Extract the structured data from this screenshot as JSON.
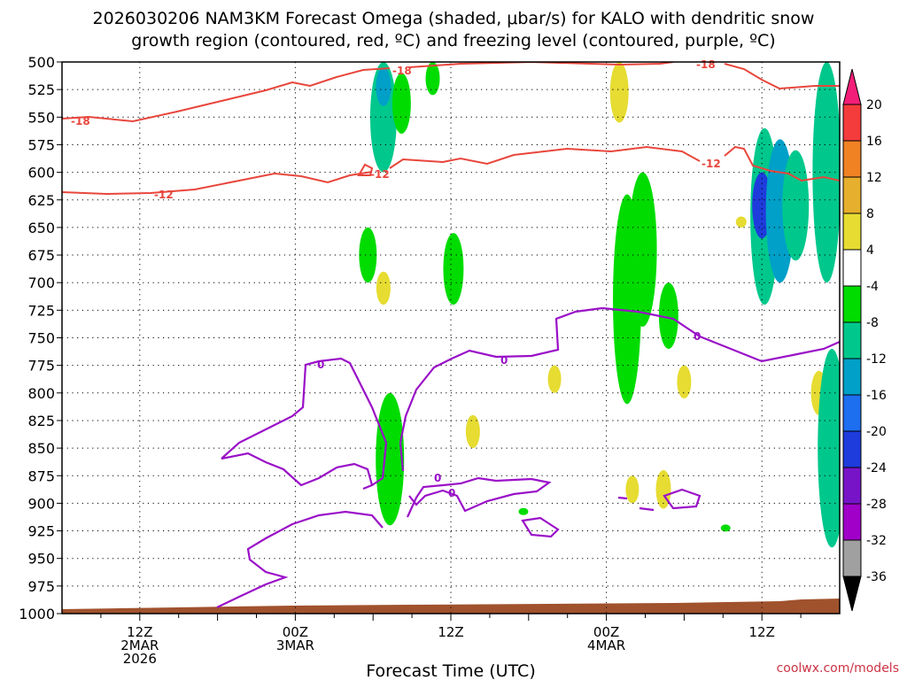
{
  "title_line1": "2026030206 NAM3KM Forecast Omega (shaded, μbar/s) for KALO with dendritic snow",
  "title_line2": "growth region (contoured, red, ºC) and freezing level (contoured, purple, ºC)",
  "credit": "coolwx.com/models",
  "chart_data": {
    "type": "heatmap",
    "title": "2026030206 NAM3KM Forecast Omega (shaded, μbar/s) for KALO with dendritic snow growth region (contoured, red, ºC) and freezing level (contoured, purple, ºC)",
    "xlabel": "Forecast Time (UTC)",
    "ylabel": "",
    "y_axis": {
      "ticks": [
        500,
        525,
        550,
        575,
        600,
        625,
        650,
        675,
        700,
        725,
        750,
        775,
        800,
        825,
        850,
        875,
        900,
        925,
        950,
        975,
        1000
      ],
      "range": [
        500,
        1000
      ],
      "direction": "increasing-downward"
    },
    "x_axis": {
      "range_hours_from_init": [
        0,
        60
      ],
      "tick_labels": [
        {
          "hour": 6,
          "lines": [
            "12Z",
            "2MAR",
            "2026"
          ]
        },
        {
          "hour": 18,
          "lines": [
            "00Z",
            "3MAR"
          ]
        },
        {
          "hour": 30,
          "lines": [
            "12Z"
          ]
        },
        {
          "hour": 42,
          "lines": [
            "00Z",
            "4MAR"
          ]
        },
        {
          "hour": 54,
          "lines": [
            "12Z"
          ]
        }
      ]
    },
    "grid": true,
    "colorbar": {
      "ticks": [
        20,
        16,
        12,
        8,
        4,
        -4,
        -8,
        -12,
        -16,
        -20,
        -24,
        -28,
        -32,
        -36
      ],
      "colors": [
        "#f21e78",
        "#f43c3c",
        "#f08224",
        "#e6af2d",
        "#e6dc32",
        "#ffffff",
        "#00dc00",
        "#00c88c",
        "#00a0c8",
        "#1e6ef0",
        "#1e3cdc",
        "#7814c8",
        "#a000c8",
        "#a0a0a0",
        "#000000"
      ]
    },
    "contour_labels": {
      "dendritic": [
        "-18",
        "-12",
        "-18",
        "-12",
        "-18",
        "-12"
      ],
      "freezing": [
        "0",
        "0",
        "0",
        "0",
        "0"
      ]
    },
    "series": [
      {
        "kind": "omega",
        "points": [
          {
            "x": 24.8,
            "y1": 500,
            "y2": 600,
            "v": -8
          },
          {
            "x": 24.8,
            "y1": 505,
            "y2": 540,
            "v": -12
          },
          {
            "x": 26.2,
            "y1": 510,
            "y2": 565,
            "v": -6
          },
          {
            "x": 28.6,
            "y1": 500,
            "y2": 530,
            "v": -6
          },
          {
            "x": 30.2,
            "y1": 655,
            "y2": 720,
            "v": -6
          },
          {
            "x": 23.6,
            "y1": 650,
            "y2": 700,
            "v": -6
          },
          {
            "x": 24.8,
            "y1": 690,
            "y2": 720,
            "v": 5
          },
          {
            "x": 25.3,
            "y1": 800,
            "y2": 920,
            "v": -6
          },
          {
            "x": 43.0,
            "y1": 500,
            "y2": 555,
            "v": 5
          },
          {
            "x": 43.6,
            "y1": 620,
            "y2": 810,
            "v": -6
          },
          {
            "x": 44.8,
            "y1": 600,
            "y2": 740,
            "v": -6
          },
          {
            "x": 46.8,
            "y1": 700,
            "y2": 760,
            "v": -6
          },
          {
            "x": 52.4,
            "y1": 640,
            "y2": 650,
            "v": 5
          },
          {
            "x": 54.2,
            "y1": 560,
            "y2": 720,
            "v": -8
          },
          {
            "x": 54.0,
            "y1": 600,
            "y2": 660,
            "v": -20
          },
          {
            "x": 55.4,
            "y1": 570,
            "y2": 700,
            "v": -12
          },
          {
            "x": 56.6,
            "y1": 580,
            "y2": 680,
            "v": -8
          },
          {
            "x": 59.0,
            "y1": 500,
            "y2": 700,
            "v": -8
          },
          {
            "x": 58.4,
            "y1": 780,
            "y2": 820,
            "v": 5
          },
          {
            "x": 59.4,
            "y1": 760,
            "y2": 940,
            "v": -8
          },
          {
            "x": 38.0,
            "y1": 775,
            "y2": 800,
            "v": 5
          },
          {
            "x": 31.7,
            "y1": 820,
            "y2": 850,
            "v": 5
          },
          {
            "x": 44.0,
            "y1": 875,
            "y2": 900,
            "v": 5
          },
          {
            "x": 46.4,
            "y1": 870,
            "y2": 905,
            "v": 5
          },
          {
            "x": 51.2,
            "y1": 920,
            "y2": 925,
            "v": -6
          },
          {
            "x": 35.6,
            "y1": 905,
            "y2": 910,
            "v": -6
          },
          {
            "x": 48.0,
            "y1": 775,
            "y2": 805,
            "v": 5
          }
        ]
      }
    ]
  }
}
